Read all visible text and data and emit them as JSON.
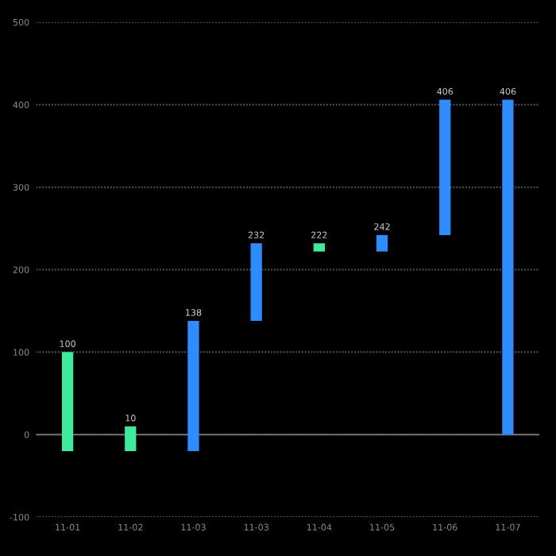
{
  "chart_data": {
    "type": "bar",
    "categories": [
      "11-01",
      "11-02",
      "11-03",
      "11-03",
      "11-04",
      "11-05",
      "11-06",
      "11-07"
    ],
    "base": [
      -20,
      -20,
      -20,
      138,
      232,
      222,
      242,
      0
    ],
    "values": [
      120,
      30,
      158,
      94,
      -10,
      20,
      164,
      406
    ],
    "colors": [
      "#3ceb9b",
      "#3ceb9b",
      "#2f8cff",
      "#2f8cff",
      "#3ceb9b",
      "#2f8cff",
      "#2f8cff",
      "#2f8cff"
    ],
    "value_labels": [
      "100",
      "10",
      "138",
      "232",
      "222",
      "242",
      "406",
      "406"
    ],
    "ylim": [
      -100,
      500
    ],
    "yticks": [
      -100,
      0,
      100,
      200,
      300,
      400,
      500
    ],
    "grid": "y"
  }
}
